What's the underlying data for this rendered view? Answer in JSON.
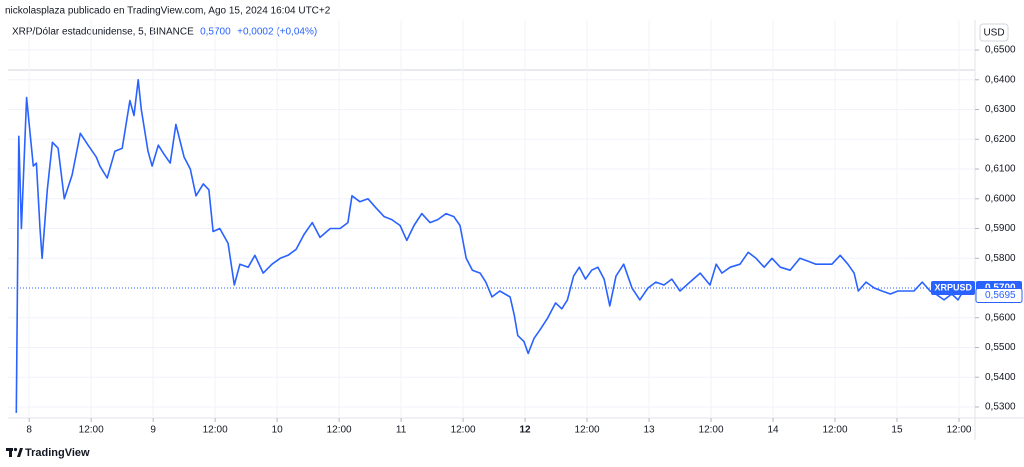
{
  "chart_data": {
    "type": "line",
    "header": "nickolasplaza publicado en TradingView.com, Ago 15, 2024 16:04 UTC+2",
    "legend": {
      "symbol": "XRP/Dólar estadounidense, 5, BINANCE",
      "last": "0,5700",
      "change": "+0,0002 (+0,04%)"
    },
    "currency": "USD",
    "footer": "TradingView",
    "x": [
      -2.5,
      -2.0,
      -1.5,
      -0.5,
      0,
      0.8,
      1.4,
      2.1,
      2.5,
      3.5,
      4.5,
      5.6,
      6.8,
      8.3,
      9.9,
      11.4,
      13,
      13.7,
      15.1,
      16.6,
      18,
      19.5,
      20.3,
      21.1,
      21.7,
      23,
      23.8,
      25,
      26.1,
      27.3,
      28.4,
      30,
      31.2,
      32.3,
      33.7,
      34.8,
      35.6,
      36.9,
      38.5,
      39.7,
      40.8,
      42.4,
      43.7,
      45.3,
      47,
      48.6,
      50.1,
      51.7,
      53.2,
      54.8,
      56.3,
      58.3,
      60.2,
      61.7,
      62.5,
      64,
      65.6,
      67.1,
      68.7,
      70.2,
      71.8,
      73.1,
      74.5,
      76,
      77.6,
      79.1,
      80.7,
      82.2,
      83.4,
      84.6,
      85.8,
      87.3,
      88.4,
      89.6,
      91.1,
      93.1,
      93.9,
      94.6,
      95.8,
      96.6,
      97.7,
      98.9,
      100.4,
      101.9,
      103.1,
      104.2,
      105.4,
      106.5,
      107.7,
      108.9,
      110.1,
      111.3,
      112.4,
      113.6,
      115.1,
      116.7,
      118.2,
      119.8,
      121.3,
      122.9,
      124.4,
      126,
      127.9,
      129.9,
      131.8,
      133,
      134.1,
      135.7,
      137.6,
      139.2,
      140.7,
      142.3,
      143.8,
      145.4,
      147.3,
      149.2,
      150.8,
      152.3,
      153.9,
      155.4,
      157,
      158.5,
      159.7,
      160.5,
      162,
      163.6,
      165.1,
      166.7,
      168.2,
      169.8,
      171.3,
      172.9,
      174.4,
      175.5,
      177.1,
      178.6,
      179.8,
      181
    ],
    "series": [
      {
        "name": "XRPUSD",
        "color": "#2962ff",
        "values": [
          0.528,
          0.621,
          0.59,
          0.634,
          0.625,
          0.611,
          0.612,
          0.59,
          0.58,
          0.603,
          0.619,
          0.617,
          0.6,
          0.608,
          0.622,
          0.618,
          0.614,
          0.611,
          0.607,
          0.616,
          0.617,
          0.633,
          0.628,
          0.64,
          0.63,
          0.616,
          0.611,
          0.618,
          0.615,
          0.612,
          0.625,
          0.614,
          0.61,
          0.601,
          0.605,
          0.603,
          0.589,
          0.59,
          0.585,
          0.571,
          0.578,
          0.577,
          0.581,
          0.575,
          0.578,
          0.58,
          0.581,
          0.583,
          0.588,
          0.592,
          0.587,
          0.59,
          0.59,
          0.592,
          0.601,
          0.599,
          0.6,
          0.597,
          0.594,
          0.593,
          0.591,
          0.586,
          0.591,
          0.595,
          0.592,
          0.593,
          0.595,
          0.594,
          0.591,
          0.58,
          0.576,
          0.575,
          0.572,
          0.567,
          0.569,
          0.567,
          0.561,
          0.554,
          0.552,
          0.548,
          0.553,
          0.556,
          0.56,
          0.565,
          0.563,
          0.566,
          0.574,
          0.577,
          0.573,
          0.576,
          0.577,
          0.573,
          0.564,
          0.574,
          0.578,
          0.57,
          0.566,
          0.57,
          0.572,
          0.571,
          0.573,
          0.569,
          0.572,
          0.575,
          0.571,
          0.578,
          0.575,
          0.577,
          0.578,
          0.582,
          0.58,
          0.577,
          0.58,
          0.577,
          0.576,
          0.58,
          0.579,
          0.578,
          0.578,
          0.578,
          0.581,
          0.578,
          0.575,
          0.569,
          0.572,
          0.57,
          0.569,
          0.568,
          0.569,
          0.569,
          0.569,
          0.572,
          0.569,
          0.568,
          0.566,
          0.568,
          0.566,
          0.5695
        ]
      }
    ],
    "markers": [
      {
        "name": "XRPUSD",
        "value": 0.57,
        "label": "0,5700",
        "color": "#2962ff"
      },
      {
        "value": 0.5695,
        "label": "0,5695",
        "color": "#2962ff"
      }
    ],
    "xlim": [
      -4.1,
      183.1
    ],
    "xticks": [
      {
        "value": 0,
        "label": "8"
      },
      {
        "value": 12,
        "label": "12:00"
      },
      {
        "value": 24,
        "label": "9"
      },
      {
        "value": 36,
        "label": "12:00"
      },
      {
        "value": 48,
        "label": "10"
      },
      {
        "value": 60,
        "label": "12:00"
      },
      {
        "value": 72,
        "label": "11"
      },
      {
        "value": 84,
        "label": "12:00"
      },
      {
        "value": 96,
        "label": "12",
        "bold": true
      },
      {
        "value": 108,
        "label": "12:00"
      },
      {
        "value": 120,
        "label": "13"
      },
      {
        "value": 132,
        "label": "12:00"
      },
      {
        "value": 144,
        "label": "14"
      },
      {
        "value": 156,
        "label": "12:00"
      },
      {
        "value": 168,
        "label": "15"
      },
      {
        "value": 180,
        "label": "12:00"
      }
    ],
    "ylim": [
      0.5263,
      0.6601
    ],
    "yticks": [
      {
        "value": 0.53,
        "label": "0,5300"
      },
      {
        "value": 0.54,
        "label": "0,5400"
      },
      {
        "value": 0.55,
        "label": "0,5500"
      },
      {
        "value": 0.56,
        "label": "0,5600"
      },
      {
        "value": 0.58,
        "label": "0,5800"
      },
      {
        "value": 0.59,
        "label": "0,5900"
      },
      {
        "value": 0.6,
        "label": "0,6000"
      },
      {
        "value": 0.61,
        "label": "0,6100"
      },
      {
        "value": 0.62,
        "label": "0,6200"
      },
      {
        "value": 0.63,
        "label": "0,6300"
      },
      {
        "value": 0.64,
        "label": "0,6400"
      },
      {
        "value": 0.65,
        "label": "0,6500"
      }
    ],
    "grid": true
  }
}
